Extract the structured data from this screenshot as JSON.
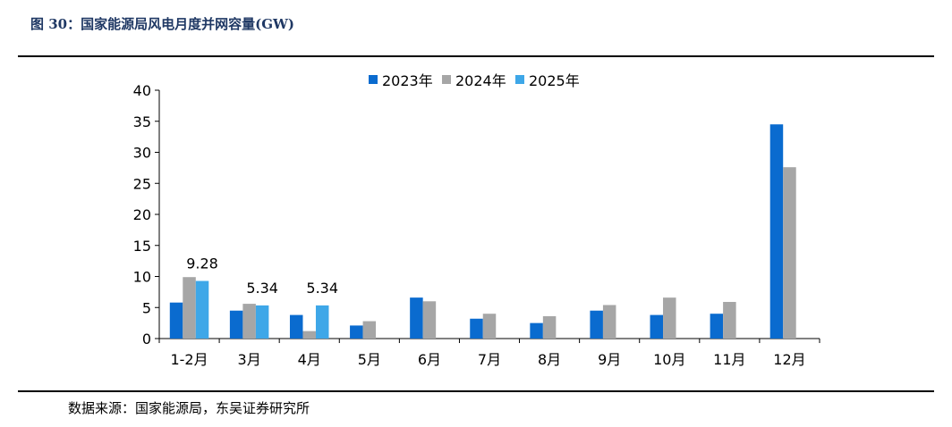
{
  "figure": {
    "title": "图 30：国家能源局风电月度并网容量(GW)",
    "source": "数据来源：国家能源局，东吴证券研究所"
  },
  "chart_data": {
    "type": "bar",
    "categories": [
      "1-2月",
      "3月",
      "4月",
      "5月",
      "6月",
      "7月",
      "8月",
      "9月",
      "10月",
      "11月",
      "12月"
    ],
    "series": [
      {
        "name": "2023年",
        "color": "#0a6bcf",
        "values": [
          5.8,
          4.5,
          3.8,
          2.1,
          6.6,
          3.2,
          2.5,
          4.5,
          3.8,
          4.0,
          34.5
        ]
      },
      {
        "name": "2024年",
        "color": "#a6a6a6",
        "values": [
          9.9,
          5.6,
          1.2,
          2.8,
          6.0,
          4.0,
          3.6,
          5.4,
          6.6,
          5.9,
          27.6
        ]
      },
      {
        "name": "2025年",
        "color": "#3ea7e8",
        "values": [
          9.28,
          5.34,
          5.34,
          null,
          null,
          null,
          null,
          null,
          null,
          null,
          null
        ]
      }
    ],
    "data_labels": [
      {
        "series": 2,
        "index": 0,
        "text": "9.28"
      },
      {
        "series": 2,
        "index": 1,
        "text": "5.34"
      },
      {
        "series": 2,
        "index": 2,
        "text": "5.34"
      }
    ],
    "y_ticks": [
      "0",
      "5",
      "10",
      "15",
      "20",
      "25",
      "30",
      "35",
      "40"
    ],
    "ylim": [
      0,
      40
    ],
    "xlabel": "",
    "ylabel": "",
    "legend_position": "top-center",
    "grid": false
  }
}
